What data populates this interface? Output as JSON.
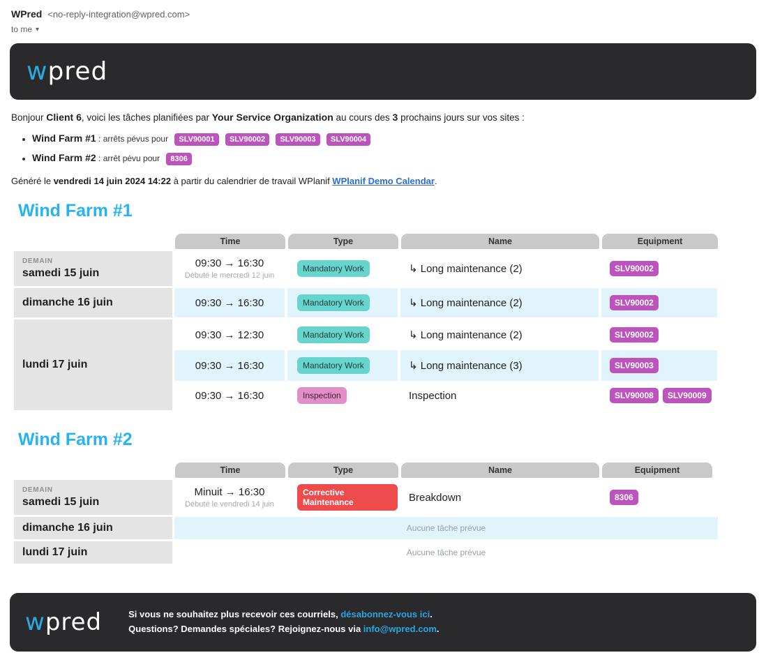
{
  "colors": {
    "dark_banner": "#2a2a2c",
    "accent_cyan_heading": "#27b3f2",
    "logo_blue": "#29aae1",
    "header_pill_gray": "#c9c9c9",
    "date_cell_gray": "#e4e4e4",
    "row_alt_blue": "#e1f4fc",
    "badge_teal": "#67d5cd",
    "badge_pink": "#e38fc7",
    "badge_red": "#ee4c4c",
    "badge_magenta": "#bd53bd",
    "body_link_blue": "#2b6cd9",
    "footer_link_blue": "#29a8e0"
  },
  "email_header": {
    "sender_name": "WPred",
    "sender_address": "<no-reply-integration@wpred.com>",
    "to_label": "to me",
    "caret": "▾"
  },
  "logo": {
    "first": "w",
    "rest": "pred"
  },
  "intro": {
    "part1": "Bonjour ",
    "client": "Client 6",
    "part2": ", voici les tâches planifiées par ",
    "org": "Your Service Organization",
    "part3": " au cours des ",
    "days": "3",
    "part4": " prochains jours sur vos sites :"
  },
  "bullets": [
    {
      "site": "Wind Farm #1",
      "sep": " : ",
      "text": "arrêts pévus pour",
      "badges": [
        "SLV90001",
        "SLV90002",
        "SLV90003",
        "SLV90004"
      ]
    },
    {
      "site": "Wind Farm #2",
      "sep": " : ",
      "text": "arrêt pévu pour",
      "badges": [
        "8306"
      ]
    }
  ],
  "generated": {
    "part1": "Généré le ",
    "datetime": "vendredi 14 juin 2024 14:22",
    "part2": " à partir du calendrier de travail WPlanif ",
    "link": "WPlanif Demo Calendar",
    "part3": "."
  },
  "columns": [
    "Time",
    "Type",
    "Name",
    "Equipment"
  ],
  "sections": [
    {
      "title": "Wind Farm #1",
      "groups": [
        {
          "tag": "DEMAIN",
          "date": "samedi 15 juin",
          "rows": [
            {
              "time": "09:30 → 16:30",
              "note": "Débuté le mercredi 12 juin",
              "type": "Mandatory Work",
              "name": "↳ Long maintenance (2)",
              "equipment": [
                "SLV90002"
              ]
            }
          ]
        },
        {
          "date": "dimanche 16 juin",
          "rows": [
            {
              "time": "09:30 → 16:30",
              "type": "Mandatory Work",
              "name": "↳ Long maintenance (2)",
              "equipment": [
                "SLV90002"
              ]
            }
          ]
        },
        {
          "date": "lundi 17 juin",
          "rows": [
            {
              "time": "09:30 → 12:30",
              "type": "Mandatory Work",
              "name": "↳ Long maintenance (2)",
              "equipment": [
                "SLV90002"
              ]
            },
            {
              "time": "09:30 → 16:30",
              "type": "Mandatory Work",
              "name": "↳ Long maintenance (3)",
              "equipment": [
                "SLV90003"
              ]
            },
            {
              "time": "09:30 → 16:30",
              "type": "Inspection",
              "name": "Inspection",
              "equipment": [
                "SLV90008",
                "SLV90009"
              ]
            }
          ]
        }
      ]
    },
    {
      "title": "Wind Farm #2",
      "groups": [
        {
          "tag": "DEMAIN",
          "date": "samedi 15 juin",
          "rows": [
            {
              "time": "Minuit → 16:30",
              "note": "Débuté le vendredi 14 juin",
              "type": "Corrective Maintenance",
              "name": "Breakdown",
              "equipment": [
                "8306"
              ]
            }
          ]
        },
        {
          "date": "dimanche 16 juin",
          "empty": "Aucune tâche prévue"
        },
        {
          "date": "lundi 17 juin",
          "empty": "Aucune tâche prévue"
        }
      ]
    }
  ],
  "footer": {
    "line1_part1": "Si vous ne souhaitez plus recevoir ces courriels, ",
    "line1_link": "désabonnez-vous ici",
    "line1_part2": ".",
    "line2_part1": "Questions? Demandes spéciales? Rejoignez-nous via ",
    "line2_link": "info@wpred.com",
    "line2_part2": "."
  }
}
